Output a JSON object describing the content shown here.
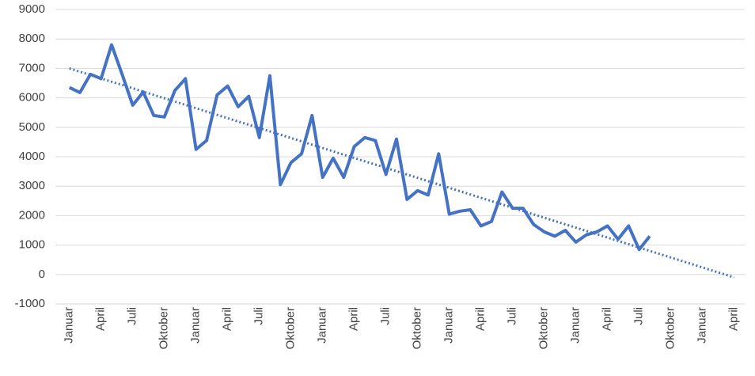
{
  "chart_data": {
    "type": "line",
    "categories": [
      "Januar",
      null,
      null,
      "April",
      null,
      null,
      "Juli",
      null,
      null,
      "Oktober",
      null,
      null,
      "Januar",
      null,
      null,
      "April",
      null,
      null,
      "Juli",
      null,
      null,
      "Oktober",
      null,
      null,
      "Januar",
      null,
      null,
      "April",
      null,
      null,
      "Juli",
      null,
      null,
      "Oktober",
      null,
      null,
      "Januar",
      null,
      null,
      "April",
      null,
      null,
      "Juli",
      null,
      null,
      "Oktober",
      null,
      null,
      "Januar",
      null,
      null,
      "April",
      null,
      null,
      "Juli",
      null,
      null,
      "Oktober",
      null,
      null,
      "Januar",
      null,
      null,
      "April"
    ],
    "series": [
      {
        "color": "#4472c4",
        "style": "solid",
        "values": [
          6350,
          6180,
          6800,
          6650,
          7800,
          6800,
          5750,
          6200,
          5400,
          5350,
          6250,
          6650,
          4250,
          4550,
          6100,
          6400,
          5700,
          6050,
          4650,
          6750,
          3050,
          3800,
          4100,
          5400,
          3300,
          3950,
          3300,
          4350,
          4650,
          4550,
          3400,
          4600,
          2550,
          2850,
          2700,
          4100,
          2050,
          2150,
          2200,
          1650,
          1800,
          2800,
          2250,
          2250,
          1700,
          1450,
          1300,
          1500,
          1100,
          1350,
          1450,
          1650,
          1200,
          1650,
          850,
          1300,
          null,
          null,
          null,
          null,
          null,
          null,
          null,
          null
        ]
      },
      {
        "color": "#4472c4",
        "style": "dotted",
        "values": [
          7000,
          6887,
          6775,
          6662,
          6549,
          6437,
          6324,
          6211,
          6099,
          5986,
          5873,
          5761,
          5648,
          5535,
          5423,
          5310,
          5197,
          5085,
          4972,
          4859,
          4747,
          4634,
          4521,
          4409,
          4296,
          4183,
          4071,
          3958,
          3845,
          3733,
          3620,
          3507,
          3395,
          3282,
          3169,
          3057,
          2944,
          2831,
          2719,
          2606,
          2493,
          2381,
          2268,
          2155,
          2043,
          1930,
          1817,
          1705,
          1592,
          1479,
          1367,
          1254,
          1141,
          1029,
          916,
          803,
          691,
          578,
          465,
          353,
          240,
          127,
          15,
          -98
        ]
      }
    ],
    "ylim": [
      -1000,
      9000
    ],
    "yticks": [
      -1000,
      0,
      1000,
      2000,
      3000,
      4000,
      5000,
      6000,
      7000,
      8000,
      9000
    ],
    "grid": true
  }
}
